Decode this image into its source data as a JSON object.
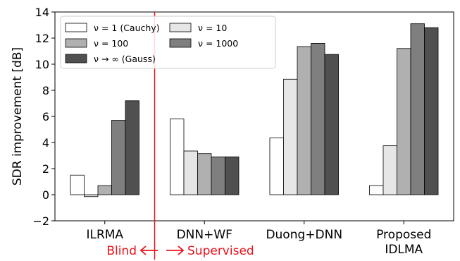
{
  "chart_data": {
    "type": "bar",
    "ylabel": "SDR improvement [dB]",
    "xlabel": "",
    "ylim": [
      -2,
      14
    ],
    "yticks": [
      "−2",
      "0",
      "2",
      "4",
      "6",
      "8",
      "10",
      "12",
      "14"
    ],
    "yticks_values": [
      -2,
      0,
      2,
      4,
      6,
      8,
      10,
      12,
      14
    ],
    "categories": [
      "ILRMA",
      "DNN+WF",
      "Duong+DNN",
      "Proposed IDLMA"
    ],
    "category_lines": [
      [
        "ILRMA"
      ],
      [
        "DNN+WF"
      ],
      [
        "Duong+DNN"
      ],
      [
        "Proposed",
        "IDLMA"
      ]
    ],
    "series": [
      {
        "name": "ν = 1 (Cauchy)",
        "color": "#ffffff",
        "values": [
          1.5,
          5.8,
          4.35,
          0.7
        ]
      },
      {
        "name": "ν = 10",
        "color": "#e6e6e6",
        "values": [
          -0.15,
          3.35,
          8.85,
          3.75
        ]
      },
      {
        "name": "ν = 100",
        "color": "#b0b0b0",
        "values": [
          0.7,
          3.15,
          11.35,
          11.2
        ]
      },
      {
        "name": "ν = 1000",
        "color": "#7f7f7f",
        "values": [
          5.7,
          2.9,
          11.6,
          13.1
        ]
      },
      {
        "name": "ν → ∞ (Gauss)",
        "color": "#505050",
        "values": [
          7.2,
          2.9,
          10.75,
          12.8
        ]
      }
    ],
    "legend": {
      "placement": "top-left",
      "columns": 2
    },
    "grid": false,
    "divider": {
      "color": "#e8131b",
      "left_label": "Blind",
      "right_label": "Supervised"
    }
  }
}
